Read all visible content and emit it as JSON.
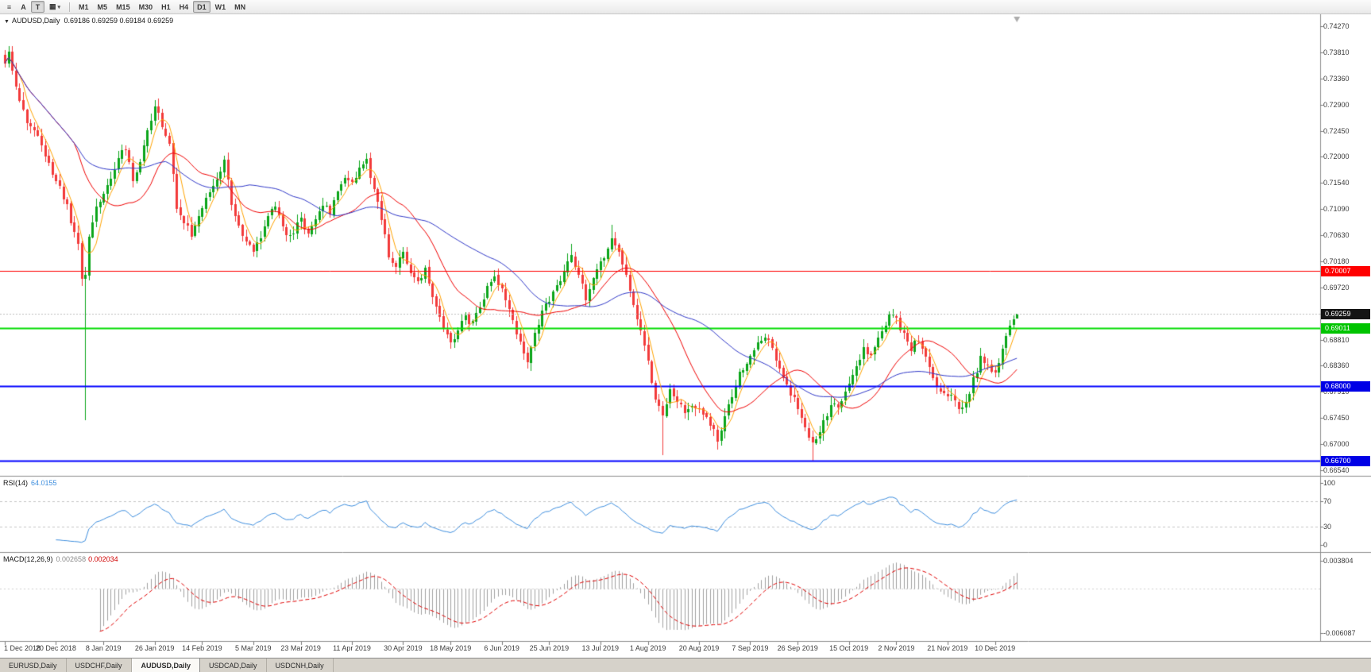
{
  "icons": {
    "header_triangle": "▼"
  },
  "toolbar": {
    "icons": [
      {
        "name": "charts-list-icon",
        "glyph": "≡",
        "pressed": false
      },
      {
        "name": "annotate-a-icon",
        "glyph": "A",
        "pressed": false
      },
      {
        "name": "text-tool-icon",
        "glyph": "T",
        "pressed": true
      },
      {
        "name": "indicators-icon",
        "glyph": "▦",
        "caret": "▾",
        "pressed": false
      }
    ],
    "timeframes": [
      {
        "label": "M1"
      },
      {
        "label": "M5"
      },
      {
        "label": "M15"
      },
      {
        "label": "M30"
      },
      {
        "label": "H1"
      },
      {
        "label": "H4"
      },
      {
        "label": "D1",
        "active": true
      },
      {
        "label": "W1"
      },
      {
        "label": "MN"
      }
    ]
  },
  "tabs": {
    "items": [
      {
        "label": "EURUSD,Daily",
        "active": false
      },
      {
        "label": "USDCHF,Daily",
        "active": false
      },
      {
        "label": "AUDUSD,Daily",
        "active": true
      },
      {
        "label": "USDCAD,Daily",
        "active": false
      },
      {
        "label": "USDCNH,Daily",
        "active": false
      }
    ]
  },
  "chart_data": {
    "type": "candlestick",
    "header": {
      "symbol": "AUDUSD,Daily",
      "ohlc": "0.69186 0.69259 0.69184 0.69259"
    },
    "y_axis": {
      "ticks": [
        "0.74270",
        "0.73810",
        "0.73360",
        "0.72900",
        "0.72450",
        "0.72000",
        "0.71540",
        "0.71090",
        "0.70630",
        "0.70180",
        "0.69720",
        "0.69270",
        "0.68810",
        "0.68360",
        "0.67910",
        "0.67450",
        "0.67000",
        "0.66540"
      ]
    },
    "x_axis": {
      "labels": [
        {
          "label": "1 Dec 2018",
          "bar": 0
        },
        {
          "label": "20 Dec 2018",
          "bar": 14
        },
        {
          "label": "8 Jan 2019",
          "bar": 27
        },
        {
          "label": "26 Jan 2019",
          "bar": 41
        },
        {
          "label": "14 Feb 2019",
          "bar": 54
        },
        {
          "label": "5 Mar 2019",
          "bar": 68
        },
        {
          "label": "23 Mar 2019",
          "bar": 81
        },
        {
          "label": "11 Apr 2019",
          "bar": 95
        },
        {
          "label": "30 Apr 2019",
          "bar": 109
        },
        {
          "label": "18 May 2019",
          "bar": 122
        },
        {
          "label": "6 Jun 2019",
          "bar": 136
        },
        {
          "label": "25 Jun 2019",
          "bar": 149
        },
        {
          "label": "13 Jul 2019",
          "bar": 163
        },
        {
          "label": "1 Aug 2019",
          "bar": 176
        },
        {
          "label": "20 Aug 2019",
          "bar": 190
        },
        {
          "label": "7 Sep 2019",
          "bar": 204
        },
        {
          "label": "26 Sep 2019",
          "bar": 217
        },
        {
          "label": "15 Oct 2019",
          "bar": 231
        },
        {
          "label": "2 Nov 2019",
          "bar": 244
        },
        {
          "label": "21 Nov 2019",
          "bar": 258
        },
        {
          "label": "10 Dec 2019",
          "bar": 271
        }
      ]
    },
    "price_markers": [
      {
        "name": "resistance-red-line",
        "label": "0.70007",
        "price": 0.70007,
        "badge_color": "#FF0000",
        "line_color": "#FF0000",
        "line_width": 1,
        "line_style": "solid"
      },
      {
        "name": "current-price",
        "label": "0.69259",
        "price": 0.69259,
        "badge_color": "#141414",
        "line_color": "#BEBEBE",
        "line_width": 1,
        "line_style": "dotted"
      },
      {
        "name": "support-green-line",
        "label": "0.69011",
        "price": 0.69011,
        "badge_color": "#00C400",
        "line_color": "#00DC00",
        "line_width": 2,
        "line_style": "solid"
      },
      {
        "name": "support-blue-line-1",
        "label": "0.68000",
        "price": 0.68,
        "badge_color": "#0000E6",
        "line_color": "#0000FF",
        "line_width": 2,
        "line_style": "solid"
      },
      {
        "name": "support-blue-line-2",
        "label": "0.66700",
        "price": 0.667,
        "badge_color": "#0000E6",
        "line_color": "#0000FF",
        "line_width": 2,
        "line_style": "solid"
      }
    ],
    "bars": {
      "count": 278,
      "last_close": 0.69259,
      "last_bar": {
        "open": 0.69186,
        "high": 0.69259,
        "low": 0.69184,
        "close": 0.69259
      },
      "up_color": "#0BA51A",
      "down_color": "#F23A3A",
      "close_path": [
        [
          0,
          0.736
        ],
        [
          1,
          0.7385
        ],
        [
          3,
          0.732
        ],
        [
          5,
          0.7275
        ],
        [
          7,
          0.7255
        ],
        [
          9,
          0.723
        ],
        [
          11,
          0.72
        ],
        [
          13,
          0.7175
        ],
        [
          15,
          0.7145
        ],
        [
          17,
          0.711
        ],
        [
          19,
          0.7065
        ],
        [
          20,
          0.7045
        ],
        [
          21,
          0.699
        ],
        [
          22,
          0.7
        ],
        [
          23,
          0.706
        ],
        [
          25,
          0.711
        ],
        [
          27,
          0.7135
        ],
        [
          29,
          0.716
        ],
        [
          31,
          0.72
        ],
        [
          33,
          0.7215
        ],
        [
          35,
          0.7165
        ],
        [
          37,
          0.719
        ],
        [
          39,
          0.724
        ],
        [
          41,
          0.729
        ],
        [
          42,
          0.727
        ],
        [
          43,
          0.725
        ],
        [
          45,
          0.722
        ],
        [
          47,
          0.711
        ],
        [
          49,
          0.7085
        ],
        [
          51,
          0.7065
        ],
        [
          53,
          0.7095
        ],
        [
          54,
          0.7105
        ],
        [
          56,
          0.714
        ],
        [
          58,
          0.7165
        ],
        [
          60,
          0.719
        ],
        [
          62,
          0.712
        ],
        [
          64,
          0.708
        ],
        [
          66,
          0.705
        ],
        [
          68,
          0.703
        ],
        [
          70,
          0.706
        ],
        [
          72,
          0.7095
        ],
        [
          74,
          0.7115
        ],
        [
          76,
          0.708
        ],
        [
          78,
          0.706
        ],
        [
          80,
          0.7085
        ],
        [
          81,
          0.7095
        ],
        [
          83,
          0.706
        ],
        [
          85,
          0.709
        ],
        [
          87,
          0.7115
        ],
        [
          89,
          0.7105
        ],
        [
          91,
          0.7135
        ],
        [
          93,
          0.717
        ],
        [
          95,
          0.7155
        ],
        [
          97,
          0.718
        ],
        [
          99,
          0.7192
        ],
        [
          101,
          0.7145
        ],
        [
          103,
          0.709
        ],
        [
          105,
          0.703
        ],
        [
          107,
          0.7012
        ],
        [
          109,
          0.7038
        ],
        [
          111,
          0.6998
        ],
        [
          113,
          0.6988
        ],
        [
          115,
          0.7002
        ],
        [
          117,
          0.6958
        ],
        [
          119,
          0.6922
        ],
        [
          121,
          0.6892
        ],
        [
          122,
          0.6875
        ],
        [
          124,
          0.6898
        ],
        [
          126,
          0.6922
        ],
        [
          128,
          0.6908
        ],
        [
          130,
          0.6935
        ],
        [
          132,
          0.6975
        ],
        [
          134,
          0.699
        ],
        [
          136,
          0.697
        ],
        [
          138,
          0.693
        ],
        [
          140,
          0.6895
        ],
        [
          142,
          0.6855
        ],
        [
          143,
          0.6845
        ],
        [
          145,
          0.689
        ],
        [
          147,
          0.6925
        ],
        [
          149,
          0.695
        ],
        [
          151,
          0.6975
        ],
        [
          153,
          0.7
        ],
        [
          155,
          0.703
        ],
        [
          157,
          0.6995
        ],
        [
          159,
          0.695
        ],
        [
          161,
          0.6985
        ],
        [
          163,
          0.7015
        ],
        [
          165,
          0.7045
        ],
        [
          166,
          0.706
        ],
        [
          168,
          0.7035
        ],
        [
          170,
          0.699
        ],
        [
          172,
          0.6945
        ],
        [
          174,
          0.69
        ],
        [
          175,
          0.687
        ],
        [
          176,
          0.6845
        ],
        [
          177,
          0.68
        ],
        [
          178,
          0.6775
        ],
        [
          179,
          0.676
        ],
        [
          180,
          0.6755
        ],
        [
          182,
          0.679
        ],
        [
          184,
          0.6775
        ],
        [
          186,
          0.6755
        ],
        [
          188,
          0.6772
        ],
        [
          190,
          0.6765
        ],
        [
          192,
          0.6745
        ],
        [
          194,
          0.6722
        ],
        [
          195,
          0.671
        ],
        [
          197,
          0.675
        ],
        [
          199,
          0.6785
        ],
        [
          201,
          0.682
        ],
        [
          203,
          0.6845
        ],
        [
          205,
          0.6865
        ],
        [
          207,
          0.688
        ],
        [
          208,
          0.6888
        ],
        [
          210,
          0.6862
        ],
        [
          212,
          0.6835
        ],
        [
          214,
          0.6805
        ],
        [
          216,
          0.6778
        ],
        [
          217,
          0.6762
        ],
        [
          219,
          0.6735
        ],
        [
          221,
          0.67
        ],
        [
          222,
          0.6708
        ],
        [
          224,
          0.6738
        ],
        [
          226,
          0.6772
        ],
        [
          228,
          0.6758
        ],
        [
          230,
          0.6788
        ],
        [
          231,
          0.6798
        ],
        [
          233,
          0.6832
        ],
        [
          235,
          0.6862
        ],
        [
          237,
          0.6852
        ],
        [
          239,
          0.6888
        ],
        [
          241,
          0.6908
        ],
        [
          243,
          0.6928
        ],
        [
          244,
          0.6915
        ],
        [
          246,
          0.6892
        ],
        [
          248,
          0.6868
        ],
        [
          250,
          0.6882
        ],
        [
          252,
          0.6848
        ],
        [
          254,
          0.6818
        ],
        [
          256,
          0.6792
        ],
        [
          258,
          0.6788
        ],
        [
          260,
          0.6772
        ],
        [
          262,
          0.676
        ],
        [
          263,
          0.6775
        ],
        [
          265,
          0.6812
        ],
        [
          267,
          0.6848
        ],
        [
          269,
          0.6832
        ],
        [
          271,
          0.6822
        ],
        [
          273,
          0.6862
        ],
        [
          275,
          0.6902
        ],
        [
          276,
          0.692
        ],
        [
          277,
          0.6926
        ]
      ],
      "wicks": [
        {
          "bar": 1,
          "high": 0.7393
        },
        {
          "bar": 22,
          "low": 0.6741
        },
        {
          "bar": 42,
          "high": 0.73
        },
        {
          "bar": 99,
          "high": 0.7206
        },
        {
          "bar": 134,
          "high": 0.7002
        },
        {
          "bar": 143,
          "low": 0.6833
        },
        {
          "bar": 155,
          "high": 0.7048
        },
        {
          "bar": 166,
          "high": 0.7081
        },
        {
          "bar": 180,
          "low": 0.668
        },
        {
          "bar": 195,
          "low": 0.669
        },
        {
          "bar": 221,
          "low": 0.6671
        }
      ]
    },
    "moving_averages": [
      {
        "name": "ma-fast",
        "period": 5,
        "color": "#FFA200"
      },
      {
        "name": "ma-medium",
        "period": 20,
        "color": "#F00000"
      },
      {
        "name": "ma-slow",
        "period": 45,
        "color": "#3038C8"
      }
    ],
    "indicators": {
      "rsi": {
        "name": "RSI(14)",
        "value": "64.0155",
        "period": 14,
        "line_color": "#3E8EDE",
        "level_lines": [
          70,
          30
        ],
        "scale": [
          {
            "label": "100",
            "value": 100
          },
          {
            "label": "70",
            "value": 70
          },
          {
            "label": "30",
            "value": 30
          },
          {
            "label": "0",
            "value": 0
          }
        ]
      },
      "macd": {
        "name": "MACD(12,26,9)",
        "value_macd": "0.002658",
        "value_signal": "0.002034",
        "fast": 12,
        "slow": 26,
        "signal": 9,
        "histogram_color": "#A0A0A0",
        "signal_color": "#E00000",
        "scale_labels": [
          {
            "label": "0.003804",
            "value": 0.003804
          },
          {
            "label": "-0.006087",
            "value": -0.006087
          }
        ]
      }
    }
  }
}
